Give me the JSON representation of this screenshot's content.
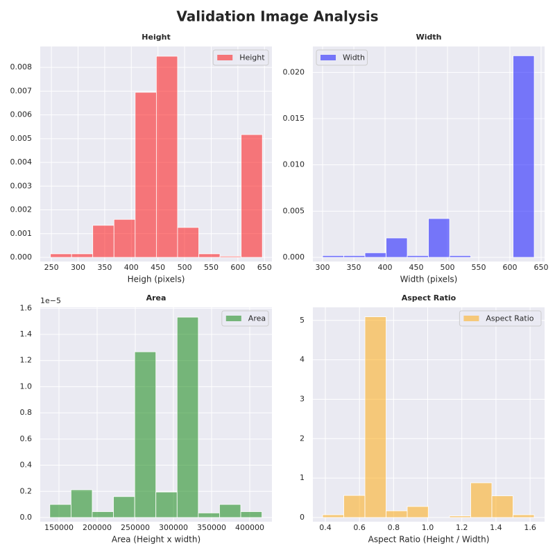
{
  "title": "Validation Image Analysis",
  "chart_data": [
    {
      "type": "histogram",
      "title": "Height",
      "x_label": "Heigh (pixels)",
      "bins": [
        248,
        287.8,
        327.6,
        367.4,
        407.2,
        447,
        486.8,
        526.6,
        566.4,
        606.2,
        646
      ],
      "series": [
        {
          "name": "Height",
          "color": "red",
          "alpha": 0.5,
          "values": [
            0.00015,
            0.00015,
            0.00135,
            0.0016,
            0.00695,
            0.00847,
            0.00126,
            0.00015,
            5e-05,
            0.00517
          ]
        }
      ],
      "xlim": [
        229,
        664
      ],
      "ylim": [
        -0.000175,
        0.00888
      ],
      "xticks": [
        250,
        300,
        350,
        400,
        450,
        500,
        550,
        600,
        650
      ],
      "yticks": [
        {
          "value": 0,
          "label": "0.000"
        },
        {
          "value": 0.001,
          "label": "0.001"
        },
        {
          "value": 0.002,
          "label": "0.002"
        },
        {
          "value": 0.003,
          "label": "0.003"
        },
        {
          "value": 0.004,
          "label": "0.004"
        },
        {
          "value": 0.005,
          "label": "0.005"
        },
        {
          "value": 0.006,
          "label": "0.006"
        },
        {
          "value": 0.007,
          "label": "0.007"
        },
        {
          "value": 0.008,
          "label": "0.008"
        }
      ],
      "grid": true,
      "legend": "upper right"
    },
    {
      "type": "histogram",
      "title": "Width",
      "x_label": "Width (pixels)",
      "bins": [
        300,
        333.9,
        367.8,
        401.7,
        435.6,
        469.5,
        503.4,
        537.3,
        571.2,
        605.1,
        639
      ],
      "series": [
        {
          "name": "Width",
          "color": "blue",
          "alpha": 0.5,
          "values": [
            0.0002,
            0.0002,
            0.0005,
            0.0021,
            0.0002,
            0.0042,
            0.0002,
            0,
            0,
            0.0218
          ]
        }
      ],
      "xlim": [
        284.4,
        655.6
      ],
      "ylim": [
        -0.00045,
        0.0228
      ],
      "xticks": [
        300,
        350,
        400,
        450,
        500,
        550,
        600,
        650
      ],
      "yticks": [
        {
          "value": 0,
          "label": "0.000"
        },
        {
          "value": 0.005,
          "label": "0.005"
        },
        {
          "value": 0.01,
          "label": "0.010"
        },
        {
          "value": 0.015,
          "label": "0.015"
        },
        {
          "value": 0.02,
          "label": "0.020"
        }
      ],
      "grid": true,
      "legend": "upper left"
    },
    {
      "type": "histogram",
      "title": "Area",
      "x_label": "Area (Height x width)",
      "offset_text": "1e−5",
      "bins": [
        138000,
        165800,
        193600,
        221400,
        249200,
        277000,
        304800,
        332600,
        360400,
        388200,
        416000
      ],
      "series": [
        {
          "name": "Area",
          "color": "green",
          "alpha": 0.5,
          "values": [
            0.1,
            0.212,
            0.045,
            0.16,
            1.267,
            0.195,
            1.532,
            0.035,
            0.1,
            0.045
          ]
        }
      ],
      "xlim": [
        125455,
        429091
      ],
      "ylim": [
        -0.032,
        1.607
      ],
      "xticks": [
        150000,
        200000,
        250000,
        300000,
        350000,
        400000
      ],
      "yticks": [
        {
          "value": 0,
          "label": "0.0"
        },
        {
          "value": 0.2,
          "label": "0.2"
        },
        {
          "value": 0.4,
          "label": "0.4"
        },
        {
          "value": 0.6,
          "label": "0.6"
        },
        {
          "value": 0.8,
          "label": "0.8"
        },
        {
          "value": 1,
          "label": "1.0"
        },
        {
          "value": 1.2,
          "label": "1.2"
        },
        {
          "value": 1.4,
          "label": "1.4"
        },
        {
          "value": 1.6,
          "label": "1.6"
        }
      ],
      "grid": true,
      "legend": "upper right"
    },
    {
      "type": "histogram",
      "title": "Aspect Ratio",
      "x_label": "Aspect Ratio (Height / Width)",
      "bins": [
        0.384,
        0.508,
        0.632,
        0.756,
        0.88,
        1.004,
        1.128,
        1.252,
        1.376,
        1.5,
        1.624
      ],
      "series": [
        {
          "name": "Aspect Ratio",
          "color": "orange",
          "alpha": 0.5,
          "values": [
            0.07,
            0.56,
            5.09,
            0.17,
            0.28,
            0,
            0.04,
            0.88,
            0.55,
            0.07
          ]
        }
      ],
      "xlim": [
        0.327,
        1.685
      ],
      "ylim": [
        -0.106,
        5.33
      ],
      "xticks": [
        0.4,
        0.6,
        0.8,
        {
          "value": 1,
          "label": "1.0"
        },
        1.2,
        1.4,
        1.6
      ],
      "yticks": [
        0,
        1,
        2,
        3,
        4,
        5
      ],
      "grid": true,
      "legend": "upper right"
    }
  ]
}
